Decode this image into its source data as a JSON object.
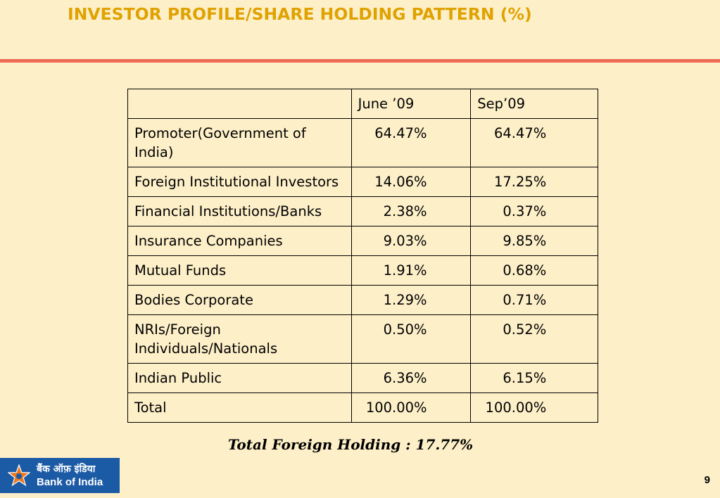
{
  "slide": {
    "title": "INVESTOR PROFILE/SHARE HOLDING PATTERN (%)",
    "footnote": "Total Foreign Holding : 17.77%",
    "page_number": "9"
  },
  "table": {
    "headers": [
      "",
      "June ’09",
      "Sep’09"
    ],
    "rows": [
      {
        "category": "Promoter(Government of India)",
        "june_09": "64.47%",
        "sep_09": "64.47%"
      },
      {
        "category": "Foreign Institutional Investors",
        "june_09": "14.06%",
        "sep_09": "17.25%"
      },
      {
        "category": "Financial Institutions/Banks",
        "june_09": "2.38%",
        "sep_09": "0.37%"
      },
      {
        "category": "Insurance Companies",
        "june_09": "9.03%",
        "sep_09": "9.85%"
      },
      {
        "category": "Mutual Funds",
        "june_09": "1.91%",
        "sep_09": "0.68%"
      },
      {
        "category": "Bodies Corporate",
        "june_09": "1.29%",
        "sep_09": "0.71%"
      },
      {
        "category": "NRIs/Foreign Individuals/Nationals",
        "june_09": "0.50%",
        "sep_09": "0.52%"
      },
      {
        "category": "Indian Public",
        "june_09": "6.36%",
        "sep_09": "6.15%"
      },
      {
        "category": "Total",
        "june_09": "100.00%",
        "sep_09": "100.00%"
      }
    ]
  },
  "logo": {
    "hindi": "बैंक ऑफ़ इंडिया",
    "english": "Bank of India",
    "icon": "star-logo-icon",
    "background_color": "#1b5aa5",
    "star_color": "#e8791f"
  },
  "colors": {
    "background": "#fdefc8",
    "title": "#e0a200",
    "rule": "#ee6a55"
  }
}
